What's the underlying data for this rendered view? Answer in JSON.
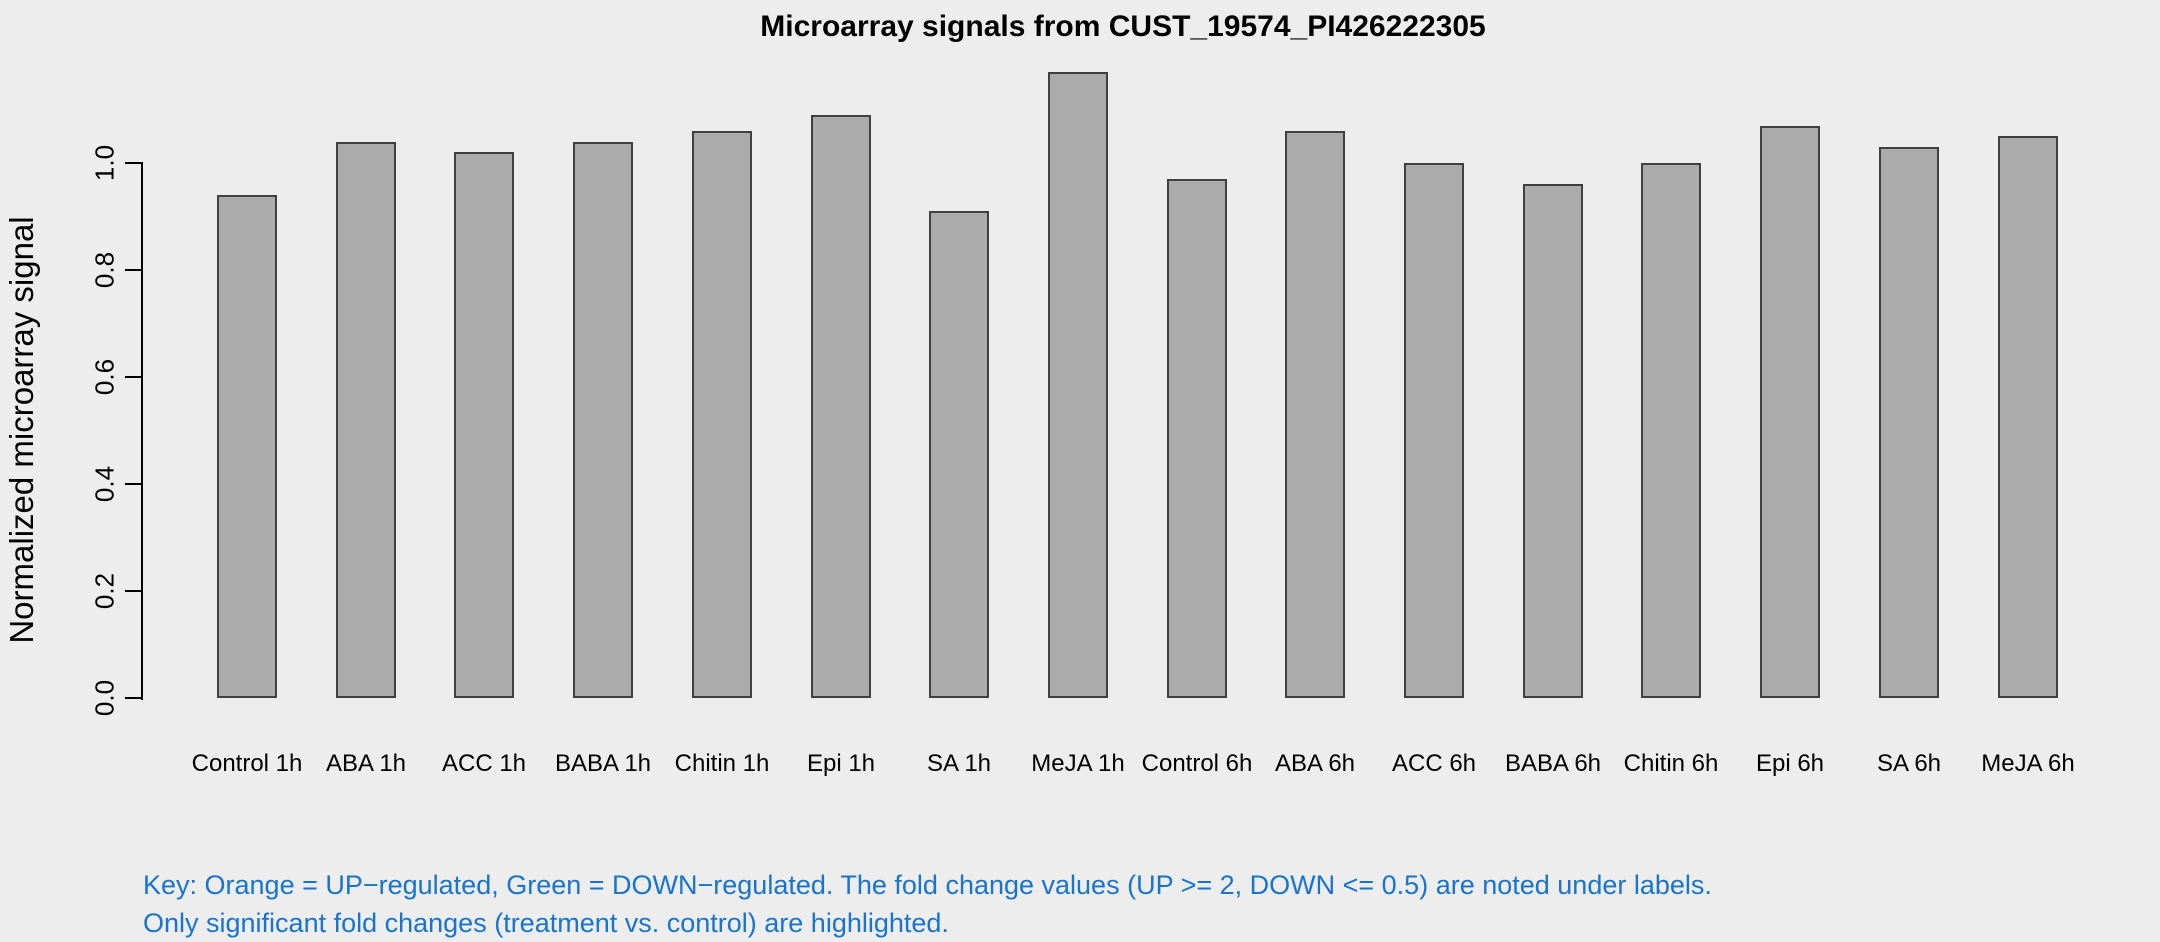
{
  "title": "Microarray signals from CUST_19574_PI426222305",
  "key_note": {
    "line1": "Key: Orange = UP−regulated, Green = DOWN−regulated. The fold change values (UP >= 2, DOWN <= 0.5) are noted under labels.",
    "line2": "Only significant fold changes (treatment vs. control) are highlighted."
  },
  "colors": {
    "background": "#EDEDED",
    "bar_fill": "#ABABAB",
    "bar_border": "#3F3F3F",
    "axis": "#000000",
    "title_text": "#000000",
    "key_text": "#1874CD"
  },
  "chart_data": {
    "type": "bar",
    "title": "Microarray signals from CUST_19574_PI426222305",
    "xlabel": "",
    "ylabel": "Normalized microarray signal",
    "categories": [
      "Control 1h",
      "ABA 1h",
      "ACC 1h",
      "BABA 1h",
      "Chitin 1h",
      "Epi 1h",
      "SA 1h",
      "MeJA 1h",
      "Control 6h",
      "ABA 6h",
      "ACC 6h",
      "BABA 6h",
      "Chitin 6h",
      "Epi 6h",
      "SA 6h",
      "MeJA 6h"
    ],
    "values": [
      0.94,
      1.04,
      1.02,
      1.04,
      1.06,
      1.09,
      0.91,
      1.17,
      0.97,
      1.06,
      1.0,
      0.96,
      1.0,
      1.07,
      1.03,
      1.05
    ],
    "ytick_labels": [
      "0.0",
      "0.2",
      "0.4",
      "0.6",
      "0.8",
      "1.0"
    ],
    "yticks": [
      0.0,
      0.2,
      0.4,
      0.6,
      0.8,
      1.0
    ],
    "ylim": [
      0,
      1.17
    ],
    "grid": false,
    "legend": "none",
    "annotation": "Key: Orange = UP−regulated, Green = DOWN−regulated. The fold change values (UP >= 2, DOWN <= 0.5) are noted under labels. Only significant fold changes (treatment vs. control) are highlighted."
  }
}
